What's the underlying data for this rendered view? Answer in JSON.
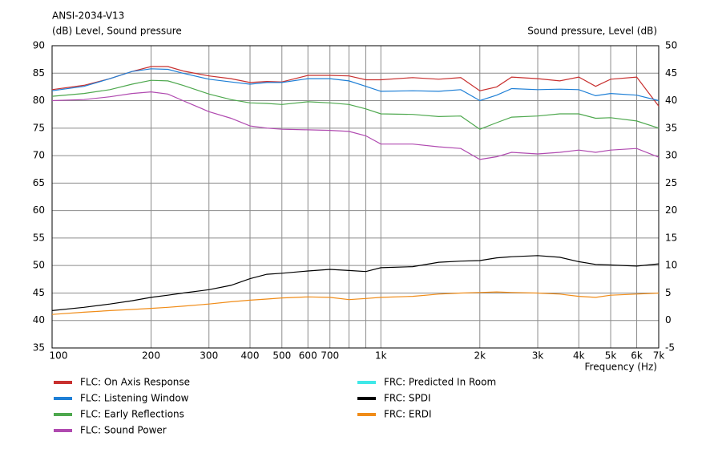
{
  "chart_data": {
    "type": "line",
    "title": "ANSI-2034-V13",
    "y_label": "(dB)  Level, Sound pressure",
    "y2_label": "Sound pressure, Level  (dB)",
    "x_label": "Frequency  (Hz)",
    "xscale": "log",
    "grid": true,
    "x": [
      100,
      125,
      150,
      175,
      200,
      225,
      250,
      300,
      350,
      400,
      450,
      500,
      600,
      700,
      800,
      900,
      1000,
      1250,
      1500,
      1750,
      2000,
      2250,
      2500,
      3000,
      3500,
      4000,
      4500,
      5000,
      6000,
      7000
    ],
    "xlim": [
      100,
      7000
    ],
    "xticks": [
      100,
      200,
      300,
      400,
      500,
      600,
      700,
      {
        "value": 1000,
        "label": "1k"
      },
      {
        "value": 2000,
        "label": "2k"
      },
      {
        "value": 3000,
        "label": "3k"
      },
      {
        "value": 4000,
        "label": "4k"
      },
      {
        "value": 5000,
        "label": "5k"
      },
      {
        "value": 6000,
        "label": "6k"
      },
      {
        "value": 7000,
        "label": "7k"
      }
    ],
    "xminor": [
      800,
      900
    ],
    "ylim": [
      35,
      90
    ],
    "yticks": [
      35,
      40,
      45,
      50,
      55,
      60,
      65,
      70,
      75,
      80,
      85,
      90
    ],
    "y2lim": [
      -5,
      50
    ],
    "y2ticks": [
      -5,
      0,
      5,
      10,
      15,
      20,
      25,
      30,
      35,
      40,
      45,
      50
    ],
    "legend": "bottom",
    "series": [
      {
        "name": "FLC: On Axis Response",
        "color": "#c8302f",
        "axis": "y",
        "values": [
          82,
          82.8,
          84,
          85.3,
          86.2,
          86.2,
          85.4,
          84.5,
          84,
          83.3,
          83.5,
          83.4,
          84.6,
          84.6,
          84.5,
          83.8,
          83.8,
          84.2,
          83.9,
          84.2,
          81.8,
          82.5,
          84.3,
          84,
          83.6,
          84.3,
          82.6,
          83.9,
          84.3,
          79
        ]
      },
      {
        "name": "FLC: Listening Window",
        "color": "#1e7fd6",
        "axis": "y",
        "values": [
          81.8,
          82.6,
          84,
          85.3,
          85.8,
          85.7,
          85,
          83.9,
          83.4,
          83,
          83.3,
          83.3,
          84,
          84,
          83.6,
          82.6,
          81.7,
          81.8,
          81.7,
          82,
          80,
          81,
          82.2,
          82,
          82.1,
          82,
          80.9,
          81.3,
          81,
          80
        ]
      },
      {
        "name": "FLC: Early Reflections",
        "color": "#4ea84e",
        "axis": "y",
        "values": [
          80.8,
          81.3,
          82,
          83,
          83.7,
          83.6,
          82.8,
          81.2,
          80.2,
          79.6,
          79.5,
          79.3,
          79.8,
          79.6,
          79.3,
          78.5,
          77.6,
          77.5,
          77.1,
          77.2,
          74.8,
          76,
          77,
          77.2,
          77.6,
          77.6,
          76.8,
          76.9,
          76.3,
          75
        ]
      },
      {
        "name": "FLC: Sound Power",
        "color": "#b04ab0",
        "axis": "y",
        "values": [
          80,
          80.2,
          80.7,
          81.3,
          81.6,
          81.2,
          80,
          78,
          76.8,
          75.4,
          75,
          74.8,
          74.7,
          74.6,
          74.4,
          73.6,
          72.1,
          72.1,
          71.6,
          71.3,
          69.3,
          69.8,
          70.6,
          70.3,
          70.6,
          71,
          70.6,
          71,
          71.3,
          69.7
        ]
      },
      {
        "name": "FRC: Predicted In Room",
        "color": "#3fe8e8",
        "axis": "y",
        "values": [
          null,
          null,
          null,
          null,
          null,
          null,
          null,
          null,
          null,
          null,
          null,
          null,
          null,
          null,
          null,
          null,
          null,
          null,
          null,
          null,
          null,
          null,
          null,
          null,
          null,
          null,
          null,
          null,
          null,
          null
        ]
      },
      {
        "name": "FRC: SPDI",
        "color": "#000000",
        "axis": "y2",
        "values": [
          1.8,
          2.4,
          3,
          3.6,
          4.2,
          4.6,
          5,
          5.6,
          6.4,
          7.6,
          8.4,
          8.6,
          9,
          9.3,
          9.1,
          8.9,
          9.6,
          9.8,
          10.6,
          10.8,
          10.9,
          11.4,
          11.6,
          11.8,
          11.5,
          10.7,
          10.2,
          10.1,
          9.9,
          10.3
        ]
      },
      {
        "name": "FRC: ERDI",
        "color": "#f08c18",
        "axis": "y2",
        "values": [
          1.1,
          1.5,
          1.8,
          2,
          2.2,
          2.4,
          2.6,
          3,
          3.4,
          3.7,
          3.9,
          4.1,
          4.3,
          4.2,
          3.8,
          4,
          4.2,
          4.4,
          4.8,
          5,
          5.1,
          5.2,
          5.1,
          5,
          4.8,
          4.4,
          4.2,
          4.6,
          4.8,
          5
        ]
      }
    ]
  }
}
